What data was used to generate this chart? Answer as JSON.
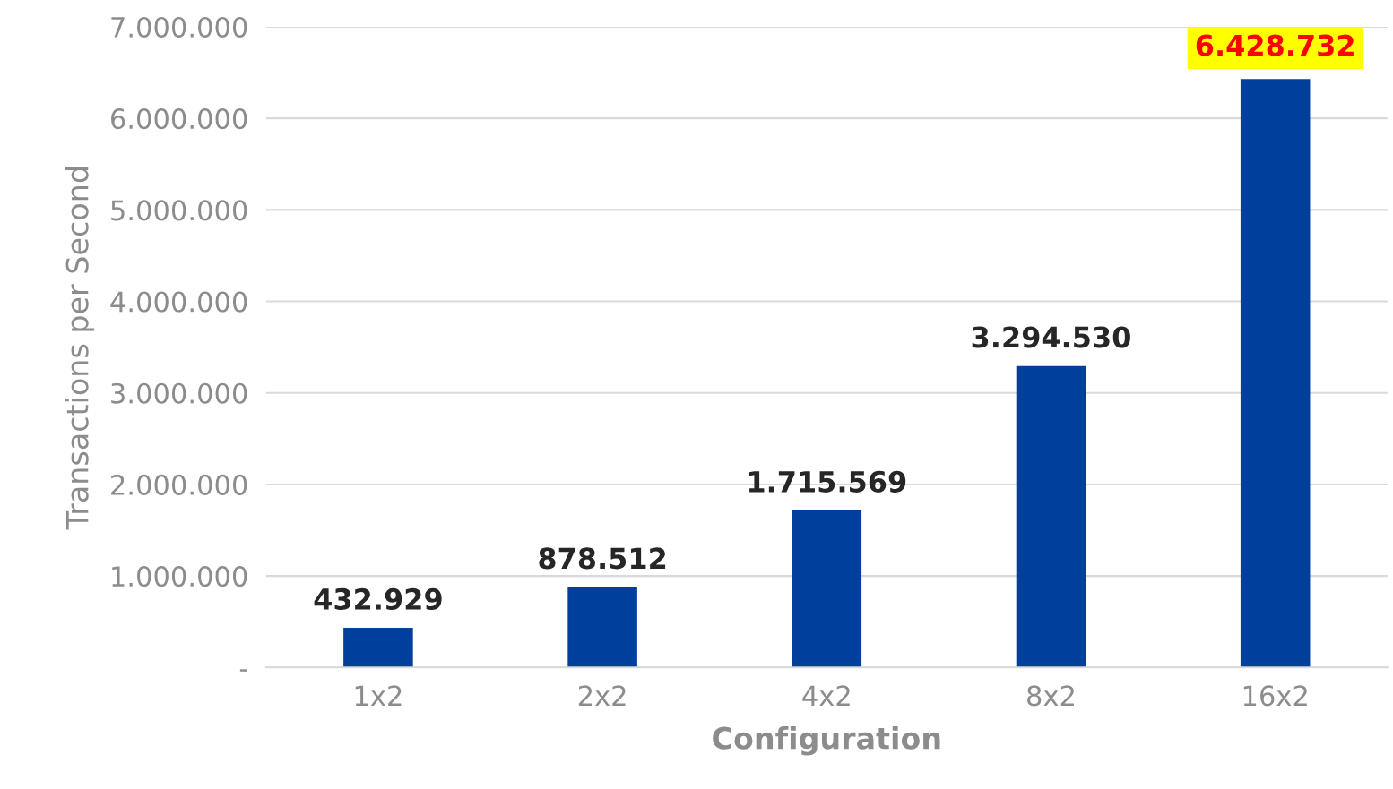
{
  "chart_data": {
    "type": "bar",
    "xlabel": "Configuration",
    "ylabel": "Transactions per Second",
    "categories": [
      "1x2",
      "2x2",
      "4x2",
      "8x2",
      "16x2"
    ],
    "values": [
      432929,
      878512,
      1715569,
      3294530,
      6428732
    ],
    "value_labels": [
      "432.929",
      "878.512",
      "1.715.569",
      "3.294.530",
      "6.428.732"
    ],
    "color": "#00409c",
    "ylim": [
      0,
      7000000
    ],
    "yticks": [
      {
        "value": 0,
        "label": "-"
      },
      {
        "value": 1000000,
        "label": "1.000.000"
      },
      {
        "value": 2000000,
        "label": "2.000.000"
      },
      {
        "value": 3000000,
        "label": "3.000.000"
      },
      {
        "value": 4000000,
        "label": "4.000.000"
      },
      {
        "value": 5000000,
        "label": "5.000.000"
      },
      {
        "value": 6000000,
        "label": "6.000.000"
      },
      {
        "value": 7000000,
        "label": "7.000.000"
      }
    ],
    "grid": "y",
    "legend": false
  }
}
